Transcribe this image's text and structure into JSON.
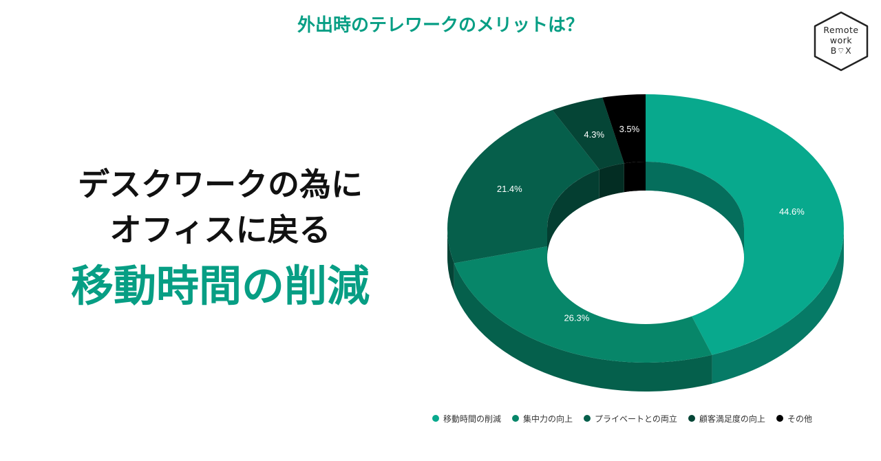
{
  "header": {
    "title": "外出時のテレワークのメリットは？"
  },
  "logo": {
    "line1": "Remote",
    "line2": "work",
    "line3": "B⌔X"
  },
  "headline": {
    "line1": "デスクワークの為に",
    "line2": "オフィスに戻る",
    "line3": "移動時間の削減"
  },
  "chart_data": {
    "type": "pie",
    "title": "外出時のテレワークのメリットは？",
    "categories": [
      "移動時間の削減",
      "集中力の向上",
      "プライベートとの両立",
      "顧客満足度の向上",
      "その他"
    ],
    "values": [
      44.6,
      26.3,
      21.4,
      4.3,
      3.5
    ],
    "labels": [
      "44.6%",
      "26.3%",
      "21.4%",
      "4.3%",
      "3.5%"
    ],
    "colors": [
      "#08a98d",
      "#078669",
      "#065f4b",
      "#054536",
      "#000000"
    ],
    "legend_position": "bottom"
  }
}
